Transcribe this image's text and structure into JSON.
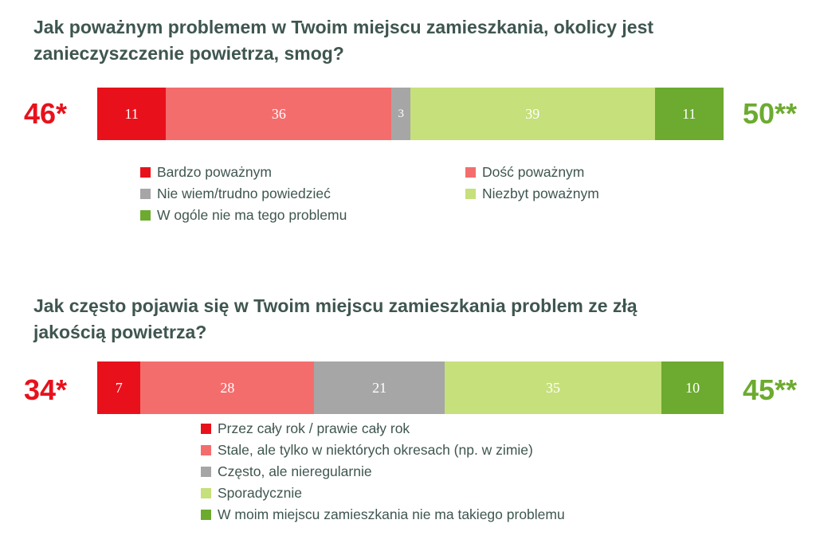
{
  "chart_data": [
    {
      "type": "bar",
      "orientation": "horizontal-stacked",
      "title": "Jak poważnym problemem w Twoim miejscu zamieszkania, okolicy jest zanieczyszczenie powietrza, smog?",
      "series": [
        {
          "name": "Bardzo poważnym",
          "value": 11,
          "color": "#e8111b"
        },
        {
          "name": "Dość poważnym",
          "value": 36,
          "color": "#f46d6d"
        },
        {
          "name": "Nie wiem/trudno powiedzieć",
          "value": 3,
          "color": "#a6a6a6"
        },
        {
          "name": "Niezbyt poważnym",
          "value": 39,
          "color": "#c6e07b"
        },
        {
          "name": "W ogóle nie ma tego problemu",
          "value": 11,
          "color": "#6cab2f"
        }
      ],
      "xlim": [
        0,
        100
      ],
      "left_total": "46*",
      "right_total": "50**",
      "legend_placement": "bottom",
      "grid": false
    },
    {
      "type": "bar",
      "orientation": "horizontal-stacked",
      "title": "Jak często pojawia się w Twoim miejscu zamieszkania problem ze złą jakością powietrza?",
      "series": [
        {
          "name": "Przez cały rok / prawie cały rok",
          "value": 7,
          "color": "#e8111b"
        },
        {
          "name": "Stale, ale tylko w niektórych okresach (np. w zimie)",
          "value": 28,
          "color": "#f46d6d"
        },
        {
          "name": "Często, ale nieregularnie",
          "value": 21,
          "color": "#a6a6a6"
        },
        {
          "name": "Sporadycznie",
          "value": 35,
          "color": "#c6e07b"
        },
        {
          "name": "W moim miejscu zamieszkania nie ma takiego problemu",
          "value": 10,
          "color": "#6cab2f"
        }
      ],
      "xlim": [
        0,
        100
      ],
      "left_total": "34*",
      "right_total": "45**",
      "legend_placement": "bottom",
      "grid": false
    }
  ]
}
